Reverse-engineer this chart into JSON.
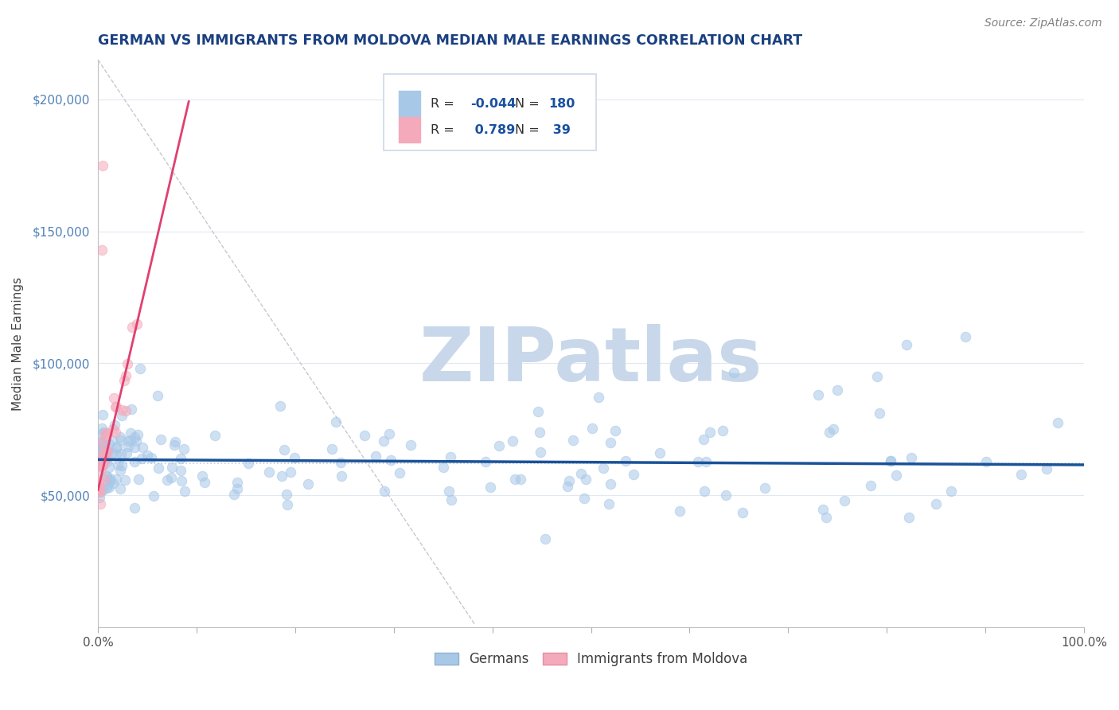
{
  "title": "GERMAN VS IMMIGRANTS FROM MOLDOVA MEDIAN MALE EARNINGS CORRELATION CHART",
  "source_text": "Source: ZipAtlas.com",
  "ylabel": "Median Male Earnings",
  "xlim": [
    0,
    1.0
  ],
  "ylim": [
    0,
    215000
  ],
  "xticks": [
    0.0,
    0.1,
    0.2,
    0.3,
    0.4,
    0.5,
    0.6,
    0.7,
    0.8,
    0.9,
    1.0
  ],
  "xticklabels": [
    "0.0%",
    "",
    "",
    "",
    "",
    "",
    "",
    "",
    "",
    "",
    "100.0%"
  ],
  "yticks": [
    50000,
    100000,
    150000,
    200000
  ],
  "yticklabels": [
    "$50,000",
    "$100,000",
    "$150,000",
    "$200,000"
  ],
  "legend_r_blue": "-0.044",
  "legend_n_blue": "180",
  "legend_r_pink": "0.789",
  "legend_n_pink": "39",
  "blue_color": "#a8c8e8",
  "pink_color": "#f4aabb",
  "blue_line_color": "#1a5298",
  "pink_line_color": "#e04070",
  "dashed_line_color": "#c8c8d0",
  "watermark_text": "ZIPatlas",
  "watermark_color": "#c8d8ea",
  "background_color": "#ffffff",
  "grid_color": "#e0e8f0",
  "title_color": "#1a4080",
  "source_color": "#808080",
  "legend_r_color": "#1a50a0",
  "scatter_alpha": 0.55,
  "scatter_size": 80,
  "blue_slope": -2000,
  "blue_intercept": 63500,
  "pink_slope": 1600000,
  "pink_intercept": 52000,
  "hline_y": 62000,
  "hline_color": "#c0c8d8",
  "hline_style": "dotted"
}
